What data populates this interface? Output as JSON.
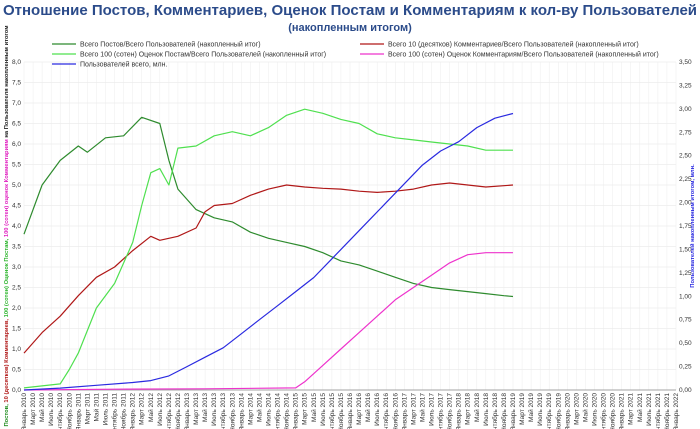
{
  "title": "Отношение Постов, Комментариев, Оценок Постам и Комментариям к кол-ву Пользователей",
  "subtitle": "(накопленным итогом)",
  "chart_data": {
    "type": "line",
    "grid": true,
    "legend_position": "top",
    "ylim_left": [
      0,
      8
    ],
    "ylim_right": [
      0,
      3.5
    ],
    "left_ticks": [
      "0,0",
      "0,5",
      "1,0",
      "1,5",
      "2,0",
      "2,5",
      "3,0",
      "3,5",
      "4,0",
      "4,5",
      "5,0",
      "5,5",
      "6,0",
      "6,5",
      "7,0",
      "7,5",
      "8,0"
    ],
    "right_ticks": [
      "0,00",
      "0,25",
      "0,50",
      "0,75",
      "1,00",
      "1,25",
      "1,50",
      "1,75",
      "2,00",
      "2,25",
      "2,50",
      "2,75",
      "3,00",
      "3,25",
      "3,50"
    ],
    "ylabel_left_parts": [
      {
        "text": "Постов, ",
        "color": "#1a8a1a"
      },
      {
        "text": "10 (десятков) Комментариев, ",
        "color": "#b01818"
      },
      {
        "text": "100 (сотен) Оценок Постам, ",
        "color": "#2db52d"
      },
      {
        "text": "100 (сотен) оценок Комментариям",
        "color": "#e020c0"
      },
      {
        "text": " на Пользователя накопленным итогом",
        "color": "#222222"
      }
    ],
    "ylabel_right": "Пользователей накопленным итогом, млн.",
    "x_labels": [
      "Январь 2010",
      "Март 2010",
      "Май 2010",
      "Июль 2010",
      "Сентябрь 2010",
      "Ноябрь 2010",
      "Январь 2011",
      "Март 2011",
      "Май 2011",
      "Июль 2011",
      "Сентябрь 2011",
      "Ноябрь 2011",
      "Январь 2012",
      "Март 2012",
      "Май 2012",
      "Июль 2012",
      "Сентябрь 2012",
      "Ноябрь 2012",
      "Январь 2013",
      "Март 2013",
      "Май 2013",
      "Июль 2013",
      "Сентябрь 2013",
      "Ноябрь 2013",
      "Январь 2014",
      "Март 2014",
      "Май 2014",
      "Июль 2014",
      "Сентябрь 2014",
      "Ноябрь 2014",
      "Январь 2015",
      "Март 2015",
      "Май 2015",
      "Июль 2015",
      "Сентябрь 2015",
      "Ноябрь 2015",
      "Январь 2016",
      "Март 2016",
      "Май 2016",
      "Июль 2016",
      "Сентябрь 2016",
      "Ноябрь 2016",
      "Январь 2017",
      "Март 2017",
      "Май 2017",
      "Июль 2017",
      "Сентябрь 2017",
      "Ноябрь 2017",
      "Январь 2018",
      "Март 2018",
      "Май 2018",
      "Июль 2018",
      "Сентябрь 2018",
      "Ноябрь 2018",
      "Январь 2019",
      "Март 2019",
      "Май 2019",
      "Июль 2019",
      "Сентябрь 2019",
      "Ноябрь 2019",
      "Январь 2020",
      "Март 2020",
      "Май 2020",
      "Июль 2020",
      "Сентябрь 2020",
      "Ноябрь 2020",
      "Январь 2021",
      "Март 2021",
      "Май 2021",
      "Июль 2021",
      "Сентябрь 2021",
      "Ноябрь 2021",
      "Январь 2022"
    ],
    "series": [
      {
        "name": "Всего Постов/Всего Пользователей (накопленный итог)",
        "color": "#2e8b2e",
        "axis": "left",
        "type": "line",
        "points": [
          [
            0,
            3.8
          ],
          [
            2,
            5.0
          ],
          [
            4,
            5.6
          ],
          [
            6,
            5.95
          ],
          [
            7,
            5.8
          ],
          [
            9,
            6.15
          ],
          [
            11,
            6.2
          ],
          [
            13,
            6.65
          ],
          [
            15,
            6.5
          ],
          [
            16,
            5.6
          ],
          [
            17,
            4.9
          ],
          [
            19,
            4.4
          ],
          [
            21,
            4.2
          ],
          [
            23,
            4.1
          ],
          [
            25,
            3.85
          ],
          [
            27,
            3.7
          ],
          [
            29,
            3.6
          ],
          [
            31,
            3.5
          ],
          [
            33,
            3.35
          ],
          [
            35,
            3.15
          ],
          [
            37,
            3.05
          ],
          [
            39,
            2.9
          ],
          [
            41,
            2.75
          ],
          [
            43,
            2.6
          ],
          [
            45,
            2.5
          ],
          [
            47,
            2.45
          ],
          [
            49,
            2.4
          ],
          [
            51,
            2.35
          ],
          [
            53,
            2.3
          ],
          [
            54,
            2.28
          ]
        ]
      },
      {
        "name": "Всего 10 (десятков) Комментариев/Всего Пользователей (накопленный итог)",
        "color": "#b01818",
        "axis": "left",
        "type": "line",
        "points": [
          [
            0,
            0.9
          ],
          [
            2,
            1.4
          ],
          [
            4,
            1.8
          ],
          [
            6,
            2.3
          ],
          [
            8,
            2.75
          ],
          [
            10,
            3.0
          ],
          [
            12,
            3.4
          ],
          [
            14,
            3.75
          ],
          [
            15,
            3.65
          ],
          [
            17,
            3.75
          ],
          [
            19,
            3.95
          ],
          [
            20,
            4.35
          ],
          [
            21,
            4.5
          ],
          [
            23,
            4.55
          ],
          [
            25,
            4.75
          ],
          [
            27,
            4.9
          ],
          [
            29,
            5.0
          ],
          [
            31,
            4.95
          ],
          [
            33,
            4.92
          ],
          [
            35,
            4.9
          ],
          [
            37,
            4.85
          ],
          [
            39,
            4.82
          ],
          [
            41,
            4.85
          ],
          [
            43,
            4.9
          ],
          [
            45,
            5.0
          ],
          [
            47,
            5.05
          ],
          [
            49,
            5.0
          ],
          [
            51,
            4.95
          ],
          [
            54,
            5.0
          ]
        ]
      },
      {
        "name": "Всего 100 (сотен) Оценок Постам/Всего Пользователей (накопленный итог)",
        "color": "#4fe04f",
        "axis": "left",
        "type": "line",
        "points": [
          [
            0,
            0.05
          ],
          [
            4,
            0.15
          ],
          [
            5,
            0.5
          ],
          [
            6,
            0.9
          ],
          [
            8,
            2.0
          ],
          [
            10,
            2.6
          ],
          [
            12,
            3.6
          ],
          [
            13,
            4.5
          ],
          [
            14,
            5.3
          ],
          [
            15,
            5.4
          ],
          [
            16,
            5.0
          ],
          [
            17,
            5.9
          ],
          [
            19,
            5.95
          ],
          [
            21,
            6.2
          ],
          [
            23,
            6.3
          ],
          [
            25,
            6.2
          ],
          [
            27,
            6.4
          ],
          [
            29,
            6.7
          ],
          [
            31,
            6.85
          ],
          [
            33,
            6.75
          ],
          [
            35,
            6.6
          ],
          [
            37,
            6.5
          ],
          [
            39,
            6.25
          ],
          [
            41,
            6.15
          ],
          [
            43,
            6.1
          ],
          [
            45,
            6.05
          ],
          [
            47,
            6.0
          ],
          [
            49,
            5.95
          ],
          [
            51,
            5.85
          ],
          [
            54,
            5.85
          ]
        ]
      },
      {
        "name": "Всего 100 (сотен) Оценок Комментариям/Всего Пользователей (накопленный итог)",
        "color": "#ee33cc",
        "axis": "left",
        "type": "line",
        "points": [
          [
            0,
            0.0
          ],
          [
            10,
            0.02
          ],
          [
            20,
            0.03
          ],
          [
            30,
            0.05
          ],
          [
            31,
            0.2
          ],
          [
            33,
            0.6
          ],
          [
            35,
            1.0
          ],
          [
            37,
            1.4
          ],
          [
            39,
            1.8
          ],
          [
            41,
            2.2
          ],
          [
            43,
            2.5
          ],
          [
            45,
            2.8
          ],
          [
            47,
            3.1
          ],
          [
            49,
            3.3
          ],
          [
            51,
            3.35
          ],
          [
            54,
            3.35
          ]
        ]
      },
      {
        "name": "Пользователей всего, млн.",
        "color": "#2a2ae0",
        "axis": "right",
        "type": "line",
        "points": [
          [
            0,
            0.0
          ],
          [
            4,
            0.02
          ],
          [
            8,
            0.05
          ],
          [
            12,
            0.08
          ],
          [
            14,
            0.1
          ],
          [
            16,
            0.15
          ],
          [
            18,
            0.25
          ],
          [
            20,
            0.35
          ],
          [
            22,
            0.45
          ],
          [
            24,
            0.6
          ],
          [
            26,
            0.75
          ],
          [
            28,
            0.9
          ],
          [
            30,
            1.05
          ],
          [
            32,
            1.2
          ],
          [
            34,
            1.4
          ],
          [
            36,
            1.6
          ],
          [
            38,
            1.8
          ],
          [
            40,
            2.0
          ],
          [
            42,
            2.2
          ],
          [
            44,
            2.4
          ],
          [
            46,
            2.55
          ],
          [
            48,
            2.65
          ],
          [
            50,
            2.8
          ],
          [
            52,
            2.9
          ],
          [
            54,
            2.95
          ]
        ]
      }
    ]
  }
}
